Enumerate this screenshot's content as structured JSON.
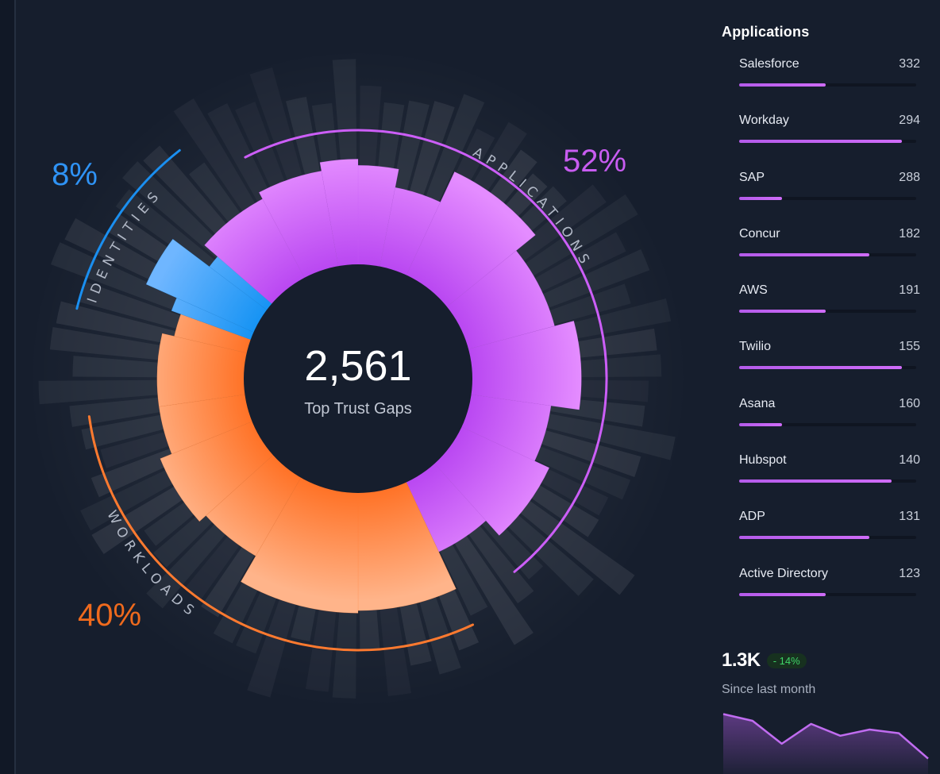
{
  "chart_data": {
    "type": "radial-bar",
    "total": "2,561",
    "center_label": "Top Trust Gaps",
    "segments": [
      {
        "name": "IDENTITIES",
        "percent_label": "8%",
        "percent": 8,
        "color": "#1a8ff0",
        "label_color": "#2f93f5"
      },
      {
        "name": "APPLICATIONS",
        "percent_label": "52%",
        "percent": 52,
        "color": "#cc5ef7",
        "label_color": "#c85cf1"
      },
      {
        "name": "WORKLOADS",
        "percent_label": "40%",
        "percent": 40,
        "color": "#ff7a2f",
        "label_color": "#ef6a1d"
      }
    ],
    "wedges": [
      {
        "segment": "APPLICATIONS",
        "start": 0,
        "end": 11,
        "value": 0.8
      },
      {
        "segment": "APPLICATIONS",
        "start": 11,
        "end": 25,
        "value": 0.65
      },
      {
        "segment": "APPLICATIONS",
        "start": 25,
        "end": 51,
        "value": 0.92
      },
      {
        "segment": "APPLICATIONS",
        "start": 51,
        "end": 75,
        "value": 0.72
      },
      {
        "segment": "APPLICATIONS",
        "start": 75,
        "end": 98,
        "value": 0.88
      },
      {
        "segment": "APPLICATIONS",
        "start": 98,
        "end": 115,
        "value": 0.65
      },
      {
        "segment": "APPLICATIONS",
        "start": 115,
        "end": 138,
        "value": 0.78
      },
      {
        "segment": "APPLICATIONS",
        "start": 138,
        "end": 155,
        "value": 0.62
      },
      {
        "segment": "WORKLOADS",
        "start": 155,
        "end": 180,
        "value": 0.95
      },
      {
        "segment": "WORKLOADS",
        "start": 180,
        "end": 210,
        "value": 0.97
      },
      {
        "segment": "WORKLOADS",
        "start": 210,
        "end": 228,
        "value": 0.73
      },
      {
        "segment": "WORKLOADS",
        "start": 228,
        "end": 248,
        "value": 0.8
      },
      {
        "segment": "WORKLOADS",
        "start": 248,
        "end": 262,
        "value": 0.7
      },
      {
        "segment": "WORKLOADS",
        "start": 262,
        "end": 283,
        "value": 0.7
      },
      {
        "segment": "WORKLOADS",
        "start": 283,
        "end": 290,
        "value": 0.6
      },
      {
        "segment": "IDENTITIES",
        "start": 290,
        "end": 294,
        "value": 0.68
      },
      {
        "segment": "IDENTITIES",
        "start": 294,
        "end": 307,
        "value": 0.95
      },
      {
        "segment": "IDENTITIES",
        "start": 307,
        "end": 311,
        "value": 0.58
      },
      {
        "segment": "APPLICATIONS",
        "start": 311,
        "end": 332,
        "value": 0.72
      },
      {
        "segment": "APPLICATIONS",
        "start": 332,
        "end": 350,
        "value": 0.78
      },
      {
        "segment": "APPLICATIONS",
        "start": 350,
        "end": 360,
        "value": 0.85
      }
    ]
  },
  "panel": {
    "title": "Applications",
    "items": [
      {
        "name": "Salesforce",
        "value": "332",
        "fill": 0.49
      },
      {
        "name": "Workday",
        "value": "294",
        "fill": 0.92
      },
      {
        "name": "SAP",
        "value": "288",
        "fill": 0.24
      },
      {
        "name": "Concur",
        "value": "182",
        "fill": 0.735
      },
      {
        "name": "AWS",
        "value": "191",
        "fill": 0.49
      },
      {
        "name": "Twilio",
        "value": "155",
        "fill": 0.92
      },
      {
        "name": "Asana",
        "value": "160",
        "fill": 0.24
      },
      {
        "name": "Hubspot",
        "value": "140",
        "fill": 0.86
      },
      {
        "name": "ADP",
        "value": "131",
        "fill": 0.735
      },
      {
        "name": "Active Directory",
        "value": "123",
        "fill": 0.49
      }
    ]
  },
  "summary": {
    "value": "1.3K",
    "change": "- 14%",
    "caption": "Since last month",
    "sparkline": [
      0.93,
      0.82,
      0.45,
      0.77,
      0.58,
      0.68,
      0.62,
      0.21
    ]
  }
}
